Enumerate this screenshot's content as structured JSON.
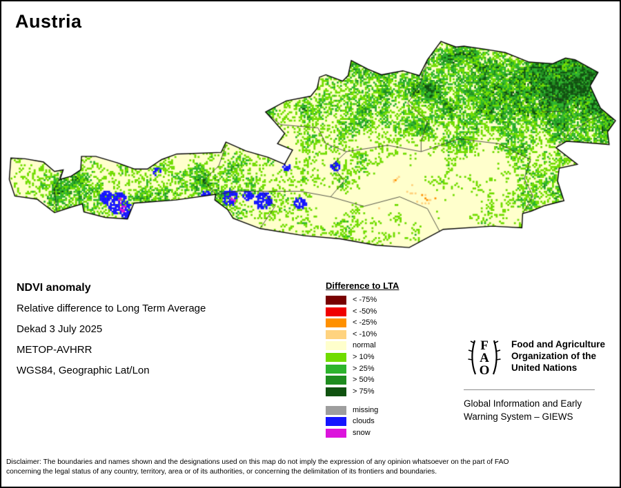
{
  "title": "Austria",
  "map": {
    "region_label": "Austria NDVI anomaly raster map"
  },
  "info": {
    "heading": "NDVI anomaly",
    "lines": [
      "Relative difference to Long Term Average",
      "Dekad 3 July 2025",
      "METOP-AVHRR",
      "WGS84, Geographic Lat/Lon"
    ]
  },
  "legend": {
    "title": "Difference to LTA",
    "classes": [
      {
        "label": "< -75%",
        "color": "#780000"
      },
      {
        "label": "< -50%",
        "color": "#f00000"
      },
      {
        "label": "< -25%",
        "color": "#ff9000"
      },
      {
        "label": "< -10%",
        "color": "#ffd37f"
      },
      {
        "label": "normal",
        "color": "#ffffcc"
      },
      {
        "label": "> 10%",
        "color": "#70dc00"
      },
      {
        "label": "> 25%",
        "color": "#2cb42c"
      },
      {
        "label": "> 50%",
        "color": "#1e8c1e"
      },
      {
        "label": "> 75%",
        "color": "#105210"
      }
    ],
    "extra": [
      {
        "label": "missing",
        "color": "#9e9e9e"
      },
      {
        "label": "clouds",
        "color": "#1414ff"
      },
      {
        "label": "snow",
        "color": "#dc14dc"
      }
    ]
  },
  "org": {
    "fao_logo_letters": [
      "F",
      "A",
      "O"
    ],
    "fao_name_lines": [
      "Food and Agriculture",
      "Organization of the",
      "United Nations"
    ],
    "giews_lines": [
      "Global Information and Early",
      "Warning System – GIEWS"
    ]
  },
  "disclaimer": {
    "line1": "Disclaimer: The boundaries and names shown and the designations used on this map do not imply the expression of any opinion whatsoever on the part of FAO",
    "line2": "concerning the legal status of any country, territory, area or of its authorities, or concerning the delimitation of its frontiers and boundaries."
  }
}
